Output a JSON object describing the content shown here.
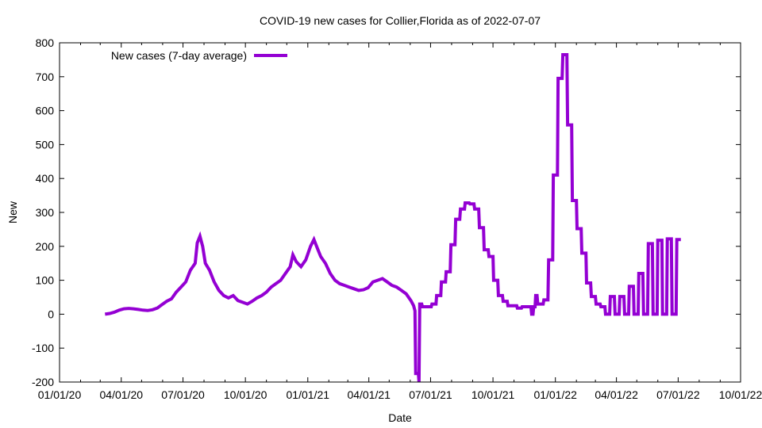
{
  "chart_data": {
    "type": "line",
    "title": "COVID-19 new cases for Collier,Florida as of 2022-07-07",
    "xlabel": "Date",
    "ylabel": "New",
    "x_tick_labels": [
      "01/01/20",
      "04/01/20",
      "07/01/20",
      "10/01/20",
      "01/01/21",
      "04/01/21",
      "07/01/21",
      "10/01/21",
      "01/01/22",
      "04/01/22",
      "07/01/22",
      "10/01/22"
    ],
    "y_tick_labels": [
      "-200",
      "-100",
      "0",
      "100",
      "200",
      "300",
      "400",
      "500",
      "600",
      "700",
      "800"
    ],
    "ylim": [
      -200,
      800
    ],
    "xlim": [
      "2020-01-01",
      "2022-10-01"
    ],
    "grid": false,
    "legend_position": "top-left",
    "series": [
      {
        "name": "New cases (7-day average)",
        "color": "#9400d3",
        "points": [
          [
            "2020-03-08",
            0
          ],
          [
            "2020-03-15",
            2
          ],
          [
            "2020-03-22",
            6
          ],
          [
            "2020-03-29",
            12
          ],
          [
            "2020-04-05",
            16
          ],
          [
            "2020-04-12",
            17
          ],
          [
            "2020-04-19",
            16
          ],
          [
            "2020-04-26",
            14
          ],
          [
            "2020-05-03",
            12
          ],
          [
            "2020-05-10",
            11
          ],
          [
            "2020-05-17",
            13
          ],
          [
            "2020-05-24",
            18
          ],
          [
            "2020-05-31",
            28
          ],
          [
            "2020-06-07",
            38
          ],
          [
            "2020-06-14",
            45
          ],
          [
            "2020-06-21",
            65
          ],
          [
            "2020-06-28",
            80
          ],
          [
            "2020-07-05",
            95
          ],
          [
            "2020-07-12",
            130
          ],
          [
            "2020-07-19",
            150
          ],
          [
            "2020-07-22",
            210
          ],
          [
            "2020-07-26",
            230
          ],
          [
            "2020-07-30",
            200
          ],
          [
            "2020-08-03",
            150
          ],
          [
            "2020-08-09",
            130
          ],
          [
            "2020-08-16",
            95
          ],
          [
            "2020-08-23",
            70
          ],
          [
            "2020-08-30",
            55
          ],
          [
            "2020-09-06",
            48
          ],
          [
            "2020-09-13",
            55
          ],
          [
            "2020-09-20",
            40
          ],
          [
            "2020-09-27",
            35
          ],
          [
            "2020-10-04",
            30
          ],
          [
            "2020-10-11",
            38
          ],
          [
            "2020-10-18",
            48
          ],
          [
            "2020-10-25",
            55
          ],
          [
            "2020-11-01",
            65
          ],
          [
            "2020-11-08",
            80
          ],
          [
            "2020-11-15",
            90
          ],
          [
            "2020-11-22",
            100
          ],
          [
            "2020-11-29",
            120
          ],
          [
            "2020-12-06",
            140
          ],
          [
            "2020-12-10",
            175
          ],
          [
            "2020-12-15",
            155
          ],
          [
            "2020-12-22",
            140
          ],
          [
            "2020-12-29",
            160
          ],
          [
            "2021-01-05",
            200
          ],
          [
            "2021-01-10",
            220
          ],
          [
            "2021-01-15",
            195
          ],
          [
            "2021-01-20",
            170
          ],
          [
            "2021-01-27",
            150
          ],
          [
            "2021-02-03",
            120
          ],
          [
            "2021-02-10",
            100
          ],
          [
            "2021-02-17",
            90
          ],
          [
            "2021-02-24",
            85
          ],
          [
            "2021-03-03",
            80
          ],
          [
            "2021-03-10",
            75
          ],
          [
            "2021-03-17",
            70
          ],
          [
            "2021-03-24",
            72
          ],
          [
            "2021-03-31",
            78
          ],
          [
            "2021-04-07",
            95
          ],
          [
            "2021-04-14",
            100
          ],
          [
            "2021-04-21",
            105
          ],
          [
            "2021-04-28",
            95
          ],
          [
            "2021-05-05",
            85
          ],
          [
            "2021-05-12",
            80
          ],
          [
            "2021-05-19",
            70
          ],
          [
            "2021-05-26",
            60
          ],
          [
            "2021-06-02",
            40
          ],
          [
            "2021-06-06",
            25
          ],
          [
            "2021-06-08",
            10
          ],
          [
            "2021-06-09",
            -175
          ],
          [
            "2021-06-13",
            -175
          ],
          [
            "2021-06-14",
            -200
          ],
          [
            "2021-06-15",
            30
          ],
          [
            "2021-06-18",
            30
          ],
          [
            "2021-06-19",
            22
          ],
          [
            "2021-07-02",
            22
          ],
          [
            "2021-07-03",
            30
          ],
          [
            "2021-07-09",
            30
          ],
          [
            "2021-07-10",
            55
          ],
          [
            "2021-07-16",
            55
          ],
          [
            "2021-07-17",
            95
          ],
          [
            "2021-07-23",
            95
          ],
          [
            "2021-07-24",
            125
          ],
          [
            "2021-07-30",
            125
          ],
          [
            "2021-07-31",
            205
          ],
          [
            "2021-08-06",
            205
          ],
          [
            "2021-08-07",
            280
          ],
          [
            "2021-08-13",
            280
          ],
          [
            "2021-08-14",
            310
          ],
          [
            "2021-08-20",
            310
          ],
          [
            "2021-08-21",
            328
          ],
          [
            "2021-08-27",
            328
          ],
          [
            "2021-08-28",
            325
          ],
          [
            "2021-09-03",
            325
          ],
          [
            "2021-09-04",
            310
          ],
          [
            "2021-09-10",
            310
          ],
          [
            "2021-09-11",
            255
          ],
          [
            "2021-09-17",
            255
          ],
          [
            "2021-09-18",
            190
          ],
          [
            "2021-09-24",
            190
          ],
          [
            "2021-09-25",
            170
          ],
          [
            "2021-10-01",
            170
          ],
          [
            "2021-10-02",
            100
          ],
          [
            "2021-10-08",
            100
          ],
          [
            "2021-10-09",
            55
          ],
          [
            "2021-10-15",
            55
          ],
          [
            "2021-10-16",
            38
          ],
          [
            "2021-10-22",
            38
          ],
          [
            "2021-10-23",
            25
          ],
          [
            "2021-11-05",
            25
          ],
          [
            "2021-11-06",
            18
          ],
          [
            "2021-11-12",
            18
          ],
          [
            "2021-11-13",
            22
          ],
          [
            "2021-11-26",
            22
          ],
          [
            "2021-11-27",
            0
          ],
          [
            "2021-11-29",
            0
          ],
          [
            "2021-11-30",
            22
          ],
          [
            "2021-12-02",
            22
          ],
          [
            "2021-12-03",
            55
          ],
          [
            "2021-12-05",
            55
          ],
          [
            "2021-12-06",
            30
          ],
          [
            "2021-12-14",
            30
          ],
          [
            "2021-12-15",
            42
          ],
          [
            "2021-12-21",
            42
          ],
          [
            "2021-12-22",
            160
          ],
          [
            "2021-12-28",
            160
          ],
          [
            "2021-12-29",
            410
          ],
          [
            "2022-01-04",
            410
          ],
          [
            "2022-01-05",
            695
          ],
          [
            "2022-01-11",
            695
          ],
          [
            "2022-01-12",
            765
          ],
          [
            "2022-01-18",
            765
          ],
          [
            "2022-01-19",
            558
          ],
          [
            "2022-01-25",
            558
          ],
          [
            "2022-01-26",
            335
          ],
          [
            "2022-02-01",
            335
          ],
          [
            "2022-02-02",
            252
          ],
          [
            "2022-02-08",
            252
          ],
          [
            "2022-02-09",
            180
          ],
          [
            "2022-02-15",
            180
          ],
          [
            "2022-02-16",
            92
          ],
          [
            "2022-02-22",
            92
          ],
          [
            "2022-02-23",
            52
          ],
          [
            "2022-03-01",
            52
          ],
          [
            "2022-03-02",
            30
          ],
          [
            "2022-03-08",
            30
          ],
          [
            "2022-03-09",
            22
          ],
          [
            "2022-03-15",
            22
          ],
          [
            "2022-03-16",
            0
          ],
          [
            "2022-03-22",
            0
          ],
          [
            "2022-03-23",
            52
          ],
          [
            "2022-03-29",
            52
          ],
          [
            "2022-03-30",
            0
          ],
          [
            "2022-04-05",
            0
          ],
          [
            "2022-04-06",
            52
          ],
          [
            "2022-04-12",
            52
          ],
          [
            "2022-04-13",
            0
          ],
          [
            "2022-04-19",
            0
          ],
          [
            "2022-04-20",
            82
          ],
          [
            "2022-04-26",
            82
          ],
          [
            "2022-04-27",
            0
          ],
          [
            "2022-05-03",
            0
          ],
          [
            "2022-05-04",
            120
          ],
          [
            "2022-05-10",
            120
          ],
          [
            "2022-05-11",
            0
          ],
          [
            "2022-05-17",
            0
          ],
          [
            "2022-05-18",
            208
          ],
          [
            "2022-05-24",
            208
          ],
          [
            "2022-05-25",
            0
          ],
          [
            "2022-05-31",
            0
          ],
          [
            "2022-06-01",
            218
          ],
          [
            "2022-06-07",
            218
          ],
          [
            "2022-06-08",
            0
          ],
          [
            "2022-06-14",
            0
          ],
          [
            "2022-06-15",
            222
          ],
          [
            "2022-06-21",
            222
          ],
          [
            "2022-06-22",
            0
          ],
          [
            "2022-06-28",
            0
          ],
          [
            "2022-06-29",
            220
          ],
          [
            "2022-07-05",
            220
          ]
        ]
      }
    ]
  }
}
